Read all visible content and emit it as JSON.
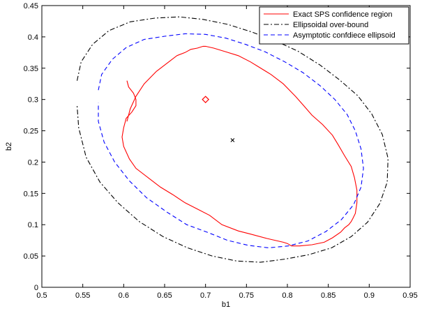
{
  "chart_data": {
    "type": "line",
    "title": "",
    "xlabel": "b1",
    "ylabel": "b2",
    "xlim": [
      0.5,
      0.95
    ],
    "ylim": [
      0,
      0.45
    ],
    "xticks": [
      0.5,
      0.55,
      0.6,
      0.65,
      0.7,
      0.75,
      0.8,
      0.85,
      0.9,
      0.95
    ],
    "yticks": [
      0,
      0.05,
      0.1,
      0.15,
      0.2,
      0.25,
      0.3,
      0.35,
      0.4,
      0.45
    ],
    "xtick_labels": [
      "0.5",
      "0.55",
      "0.6",
      "0.65",
      "0.7",
      "0.75",
      "0.8",
      "0.85",
      "0.9",
      "0.95"
    ],
    "ytick_labels": [
      "0",
      "0.05",
      "0.1",
      "0.15",
      "0.2",
      "0.25",
      "0.3",
      "0.35",
      "0.4",
      "0.45"
    ],
    "grid": false,
    "legend_position": "top-right",
    "series": [
      {
        "name": "Exact SPS confidence region",
        "color": "#ff0000",
        "dash": "solid",
        "x": [
          0.604,
          0.608,
          0.615,
          0.625,
          0.64,
          0.655,
          0.665,
          0.675,
          0.682,
          0.69,
          0.697,
          0.7,
          0.71,
          0.725,
          0.74,
          0.755,
          0.765,
          0.78,
          0.795,
          0.81,
          0.82,
          0.83,
          0.843,
          0.855,
          0.862,
          0.87,
          0.878,
          0.882,
          0.885,
          0.885,
          0.883,
          0.88,
          0.878,
          0.875,
          0.87,
          0.865,
          0.855,
          0.845,
          0.83,
          0.815,
          0.805,
          0.8,
          0.795,
          0.775,
          0.755,
          0.74,
          0.72,
          0.705,
          0.69,
          0.675,
          0.66,
          0.645,
          0.63,
          0.615,
          0.607,
          0.6,
          0.598,
          0.6,
          0.603,
          0.61,
          0.615,
          0.615,
          0.612,
          0.606,
          0.604
        ],
        "y": [
          0.265,
          0.285,
          0.305,
          0.325,
          0.345,
          0.36,
          0.37,
          0.375,
          0.38,
          0.382,
          0.385,
          0.385,
          0.382,
          0.376,
          0.37,
          0.36,
          0.352,
          0.34,
          0.325,
          0.305,
          0.29,
          0.275,
          0.26,
          0.243,
          0.228,
          0.21,
          0.193,
          0.175,
          0.155,
          0.135,
          0.118,
          0.11,
          0.105,
          0.1,
          0.095,
          0.088,
          0.079,
          0.072,
          0.068,
          0.066,
          0.066,
          0.07,
          0.072,
          0.078,
          0.085,
          0.09,
          0.1,
          0.115,
          0.125,
          0.135,
          0.148,
          0.16,
          0.175,
          0.19,
          0.205,
          0.225,
          0.24,
          0.255,
          0.27,
          0.28,
          0.29,
          0.3,
          0.31,
          0.32,
          0.33
        ]
      },
      {
        "name": "Ellipsoidal over-bound",
        "color": "#000000",
        "dash": "dashdot",
        "x": [
          0.543,
          0.548,
          0.562,
          0.582,
          0.608,
          0.638,
          0.668,
          0.697,
          0.727,
          0.756,
          0.785,
          0.813,
          0.84,
          0.864,
          0.886,
          0.903,
          0.916,
          0.923,
          0.922,
          0.913,
          0.898,
          0.878,
          0.854,
          0.826,
          0.797,
          0.767,
          0.738,
          0.708,
          0.678,
          0.648,
          0.619,
          0.593,
          0.571,
          0.554,
          0.545,
          0.543
        ],
        "y": [
          0.33,
          0.36,
          0.388,
          0.41,
          0.424,
          0.43,
          0.432,
          0.428,
          0.42,
          0.408,
          0.394,
          0.377,
          0.355,
          0.331,
          0.306,
          0.277,
          0.244,
          0.206,
          0.168,
          0.134,
          0.104,
          0.081,
          0.063,
          0.052,
          0.045,
          0.04,
          0.042,
          0.05,
          0.063,
          0.081,
          0.105,
          0.135,
          0.168,
          0.208,
          0.255,
          0.29
        ]
      },
      {
        "name": "Asymptotic confdiece ellipsoid",
        "color": "#0000ff",
        "dash": "dashed",
        "x": [
          0.569,
          0.573,
          0.586,
          0.603,
          0.625,
          0.65,
          0.675,
          0.7,
          0.725,
          0.749,
          0.773,
          0.797,
          0.819,
          0.84,
          0.858,
          0.873,
          0.883,
          0.89,
          0.893,
          0.89,
          0.881,
          0.866,
          0.847,
          0.825,
          0.801,
          0.777,
          0.752,
          0.727,
          0.702,
          0.677,
          0.653,
          0.628,
          0.607,
          0.589,
          0.576,
          0.569,
          0.569
        ],
        "y": [
          0.315,
          0.34,
          0.364,
          0.383,
          0.396,
          0.401,
          0.405,
          0.404,
          0.398,
          0.388,
          0.376,
          0.36,
          0.343,
          0.322,
          0.3,
          0.276,
          0.25,
          0.221,
          0.19,
          0.16,
          0.132,
          0.108,
          0.089,
          0.074,
          0.066,
          0.063,
          0.067,
          0.075,
          0.088,
          0.1,
          0.12,
          0.143,
          0.17,
          0.2,
          0.232,
          0.265,
          0.295
        ]
      }
    ],
    "markers": [
      {
        "label": "",
        "symbol": "diamond",
        "color": "#ff0000",
        "x": 0.7,
        "y": 0.3
      },
      {
        "label": "",
        "symbol": "cross",
        "color": "#000000",
        "x": 0.733,
        "y": 0.235
      }
    ]
  }
}
